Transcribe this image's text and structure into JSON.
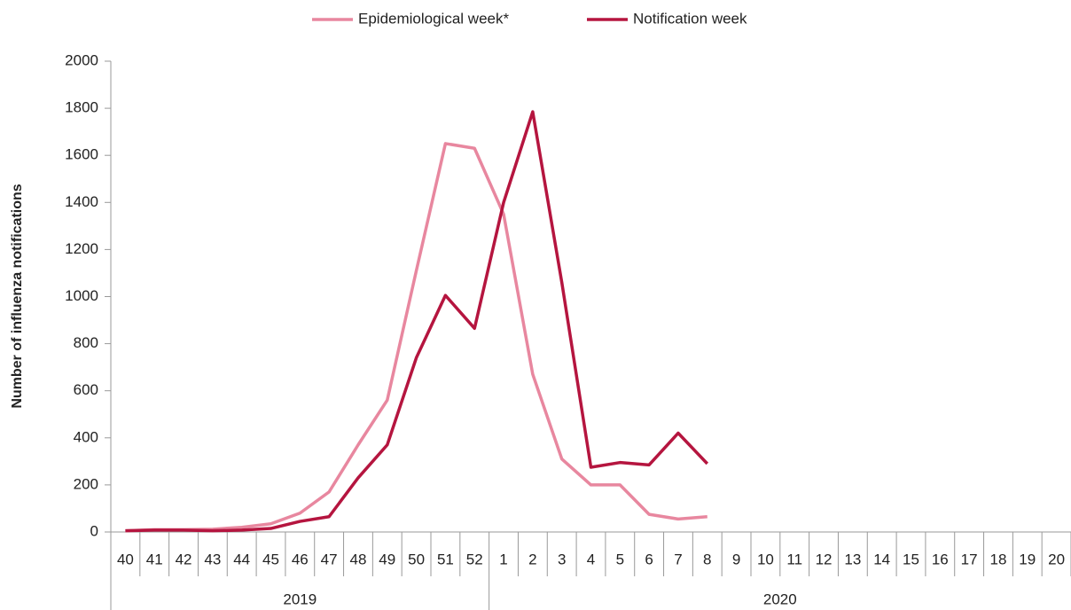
{
  "chart_data": {
    "type": "line",
    "ylabel": "Number of influenza notifications",
    "categories": [
      "40",
      "41",
      "42",
      "43",
      "44",
      "45",
      "46",
      "47",
      "48",
      "49",
      "50",
      "51",
      "52",
      "1",
      "2",
      "3",
      "4",
      "5",
      "6",
      "7",
      "8",
      "9",
      "10",
      "11",
      "12",
      "13",
      "14",
      "15",
      "16",
      "17",
      "18",
      "19",
      "20"
    ],
    "x_groups": [
      "2019",
      "2020"
    ],
    "series": [
      {
        "name": "Epidemiological week*",
        "color": "#e8879f",
        "values": [
          5,
          10,
          10,
          12,
          20,
          35,
          80,
          170,
          370,
          560,
          1110,
          1650,
          1630,
          1350,
          670,
          310,
          200,
          200,
          75,
          55,
          65,
          null,
          null,
          null,
          null,
          null,
          null,
          null,
          null,
          null,
          null,
          null,
          null
        ]
      },
      {
        "name": "Notification week",
        "color": "#b5153f",
        "values": [
          5,
          8,
          8,
          5,
          8,
          15,
          45,
          65,
          230,
          370,
          740,
          1005,
          865,
          1400,
          1785,
          1060,
          275,
          295,
          285,
          420,
          290,
          null,
          null,
          null,
          null,
          null,
          null,
          null,
          null,
          null,
          null,
          null,
          null
        ]
      }
    ],
    "ylim": [
      0,
      2000
    ],
    "yticks": [
      0,
      200,
      400,
      600,
      800,
      1000,
      1200,
      1400,
      1600,
      1800,
      2000
    ],
    "legend": "top"
  }
}
